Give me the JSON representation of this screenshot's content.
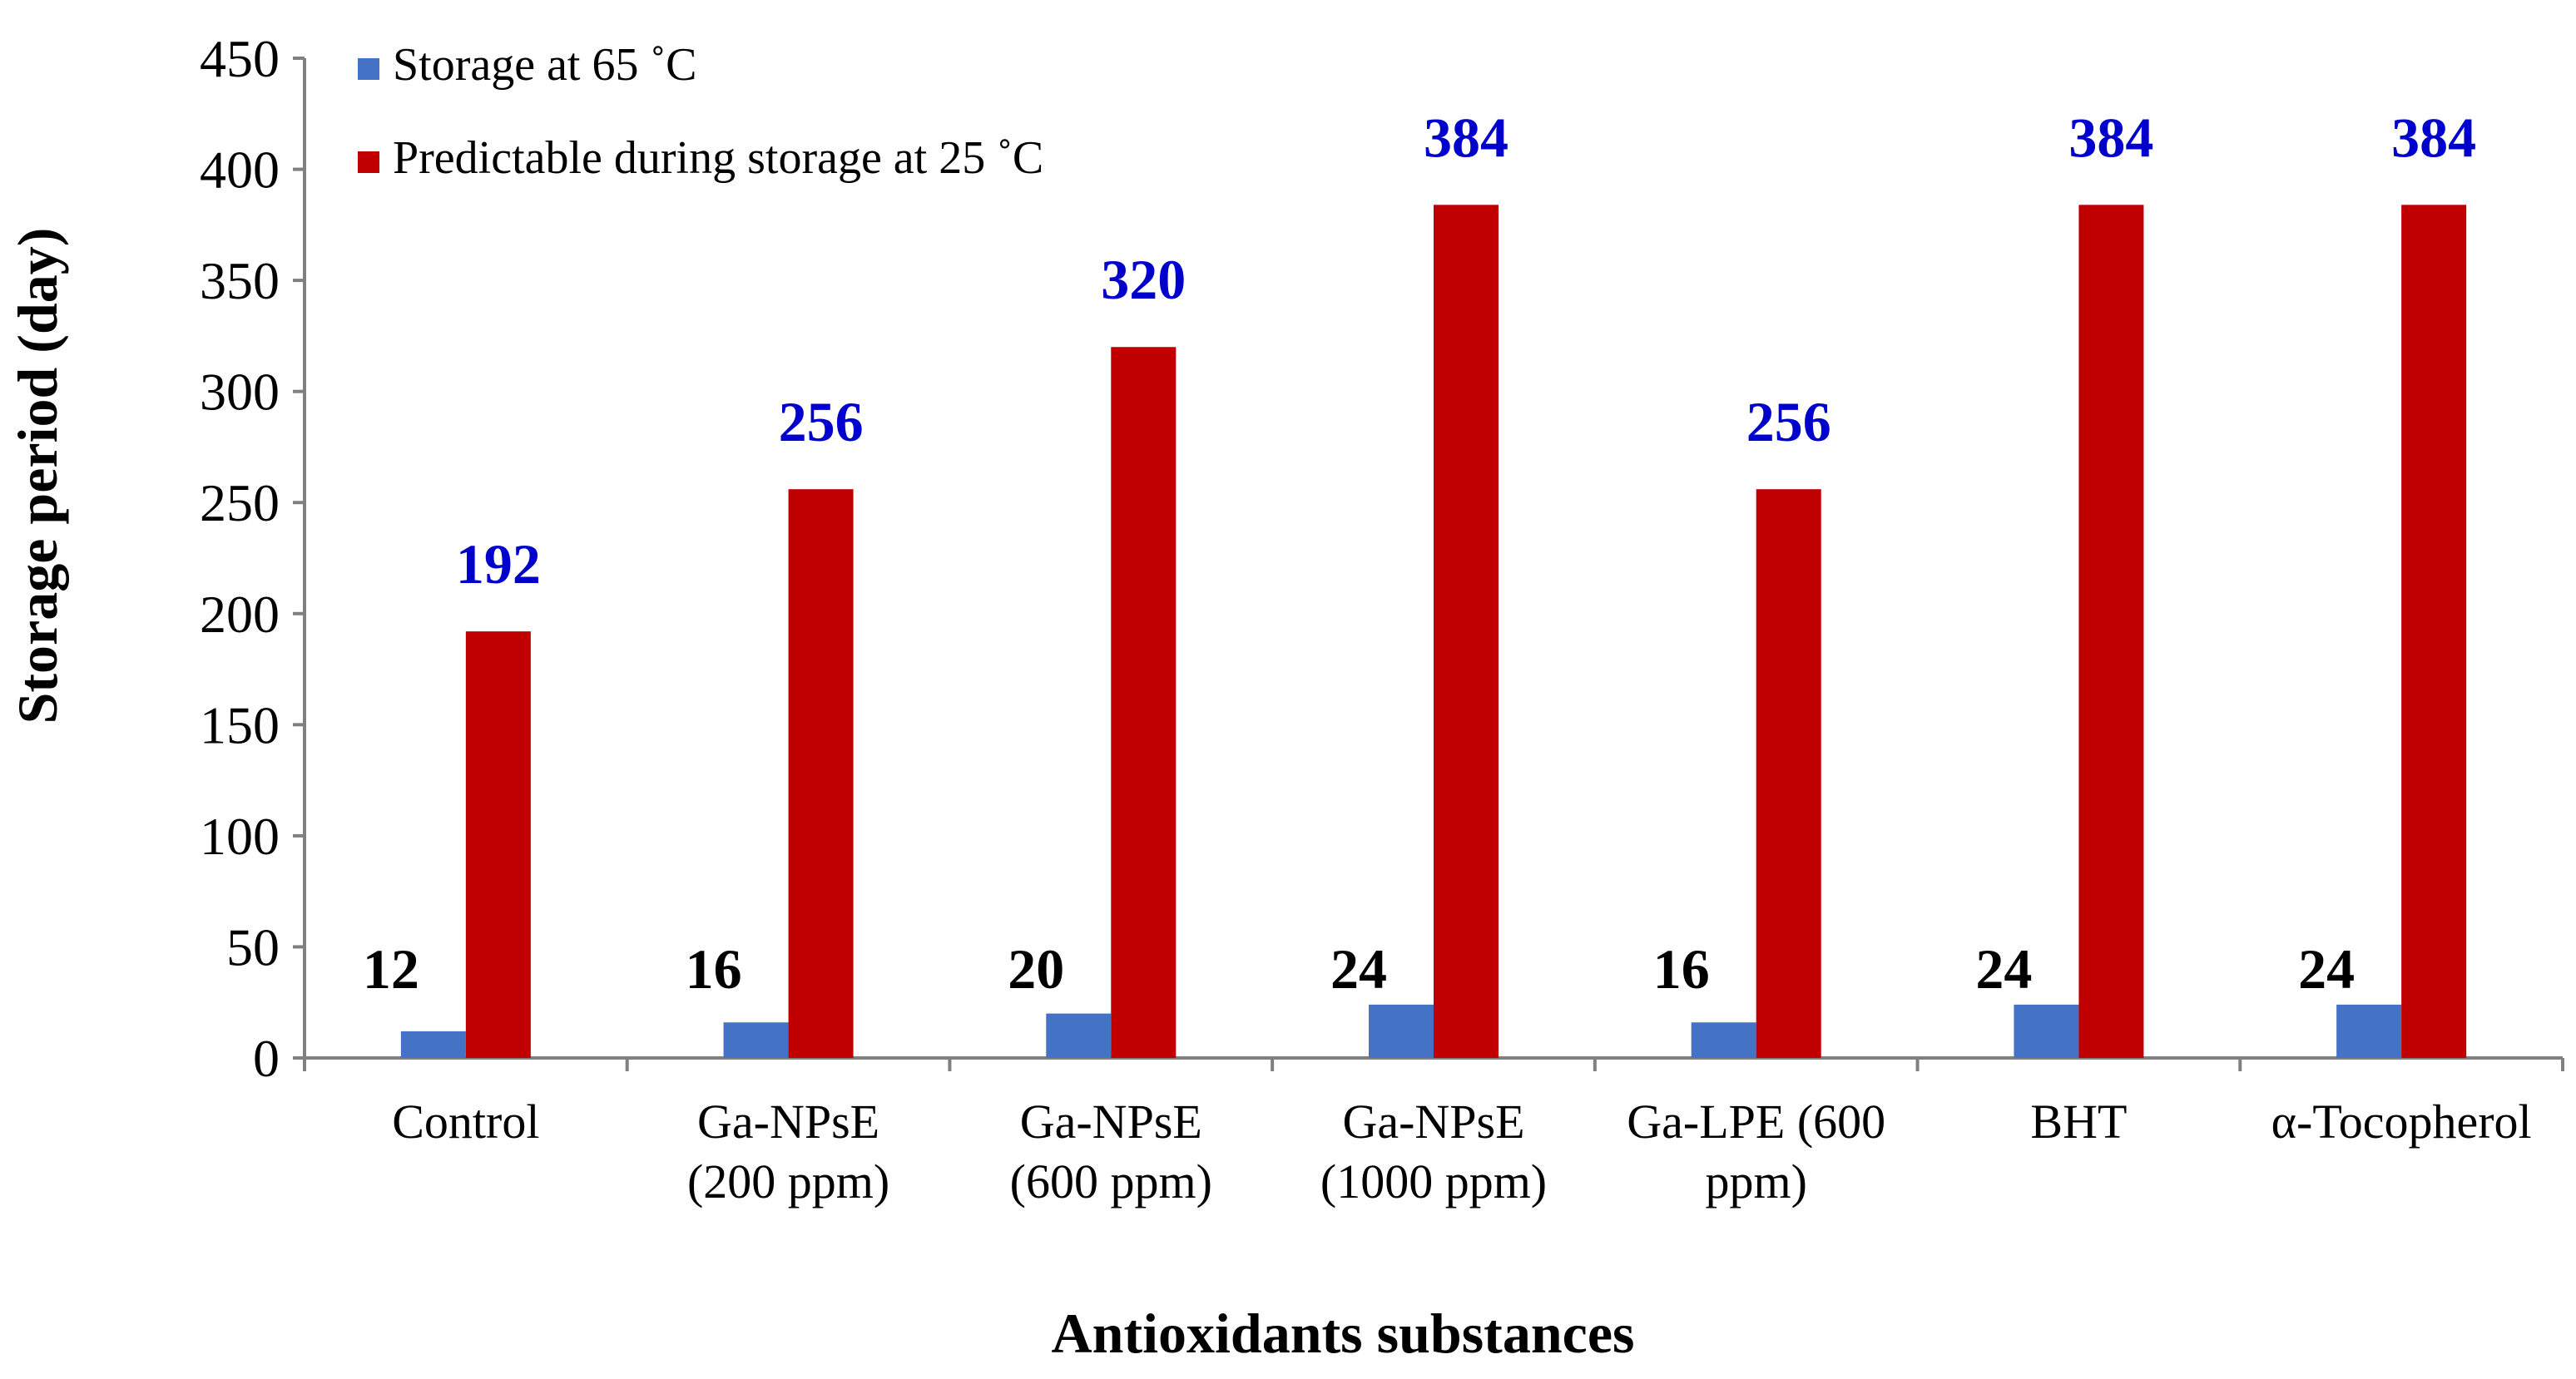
{
  "chart_data": {
    "type": "bar",
    "categories": [
      [
        "Control"
      ],
      [
        "Ga-NPsE",
        "(200 ppm)"
      ],
      [
        "Ga-NPsE",
        "(600 ppm)"
      ],
      [
        "Ga-NPsE",
        "(1000 ppm)"
      ],
      [
        "Ga-LPE (600",
        "ppm)"
      ],
      [
        "BHT"
      ],
      [
        "α-Tocopherol"
      ]
    ],
    "series": [
      {
        "name": "Storage at 65 ˚C",
        "color": "#4472C4",
        "label_color": "#000000",
        "values": [
          12,
          16,
          20,
          24,
          16,
          24,
          24
        ]
      },
      {
        "name": "Predictable during storage at 25 ˚C",
        "color": "#C00000",
        "label_color": "#0000CC",
        "values": [
          192,
          256,
          320,
          384,
          256,
          384,
          384
        ]
      }
    ],
    "xlabel": "Antioxidants substances",
    "ylabel": "Storage period (day)",
    "ylim": [
      0,
      450
    ],
    "yticks": [
      0,
      50,
      100,
      150,
      200,
      250,
      300,
      350,
      400,
      450
    ],
    "grid": false,
    "legend": "top-left"
  }
}
